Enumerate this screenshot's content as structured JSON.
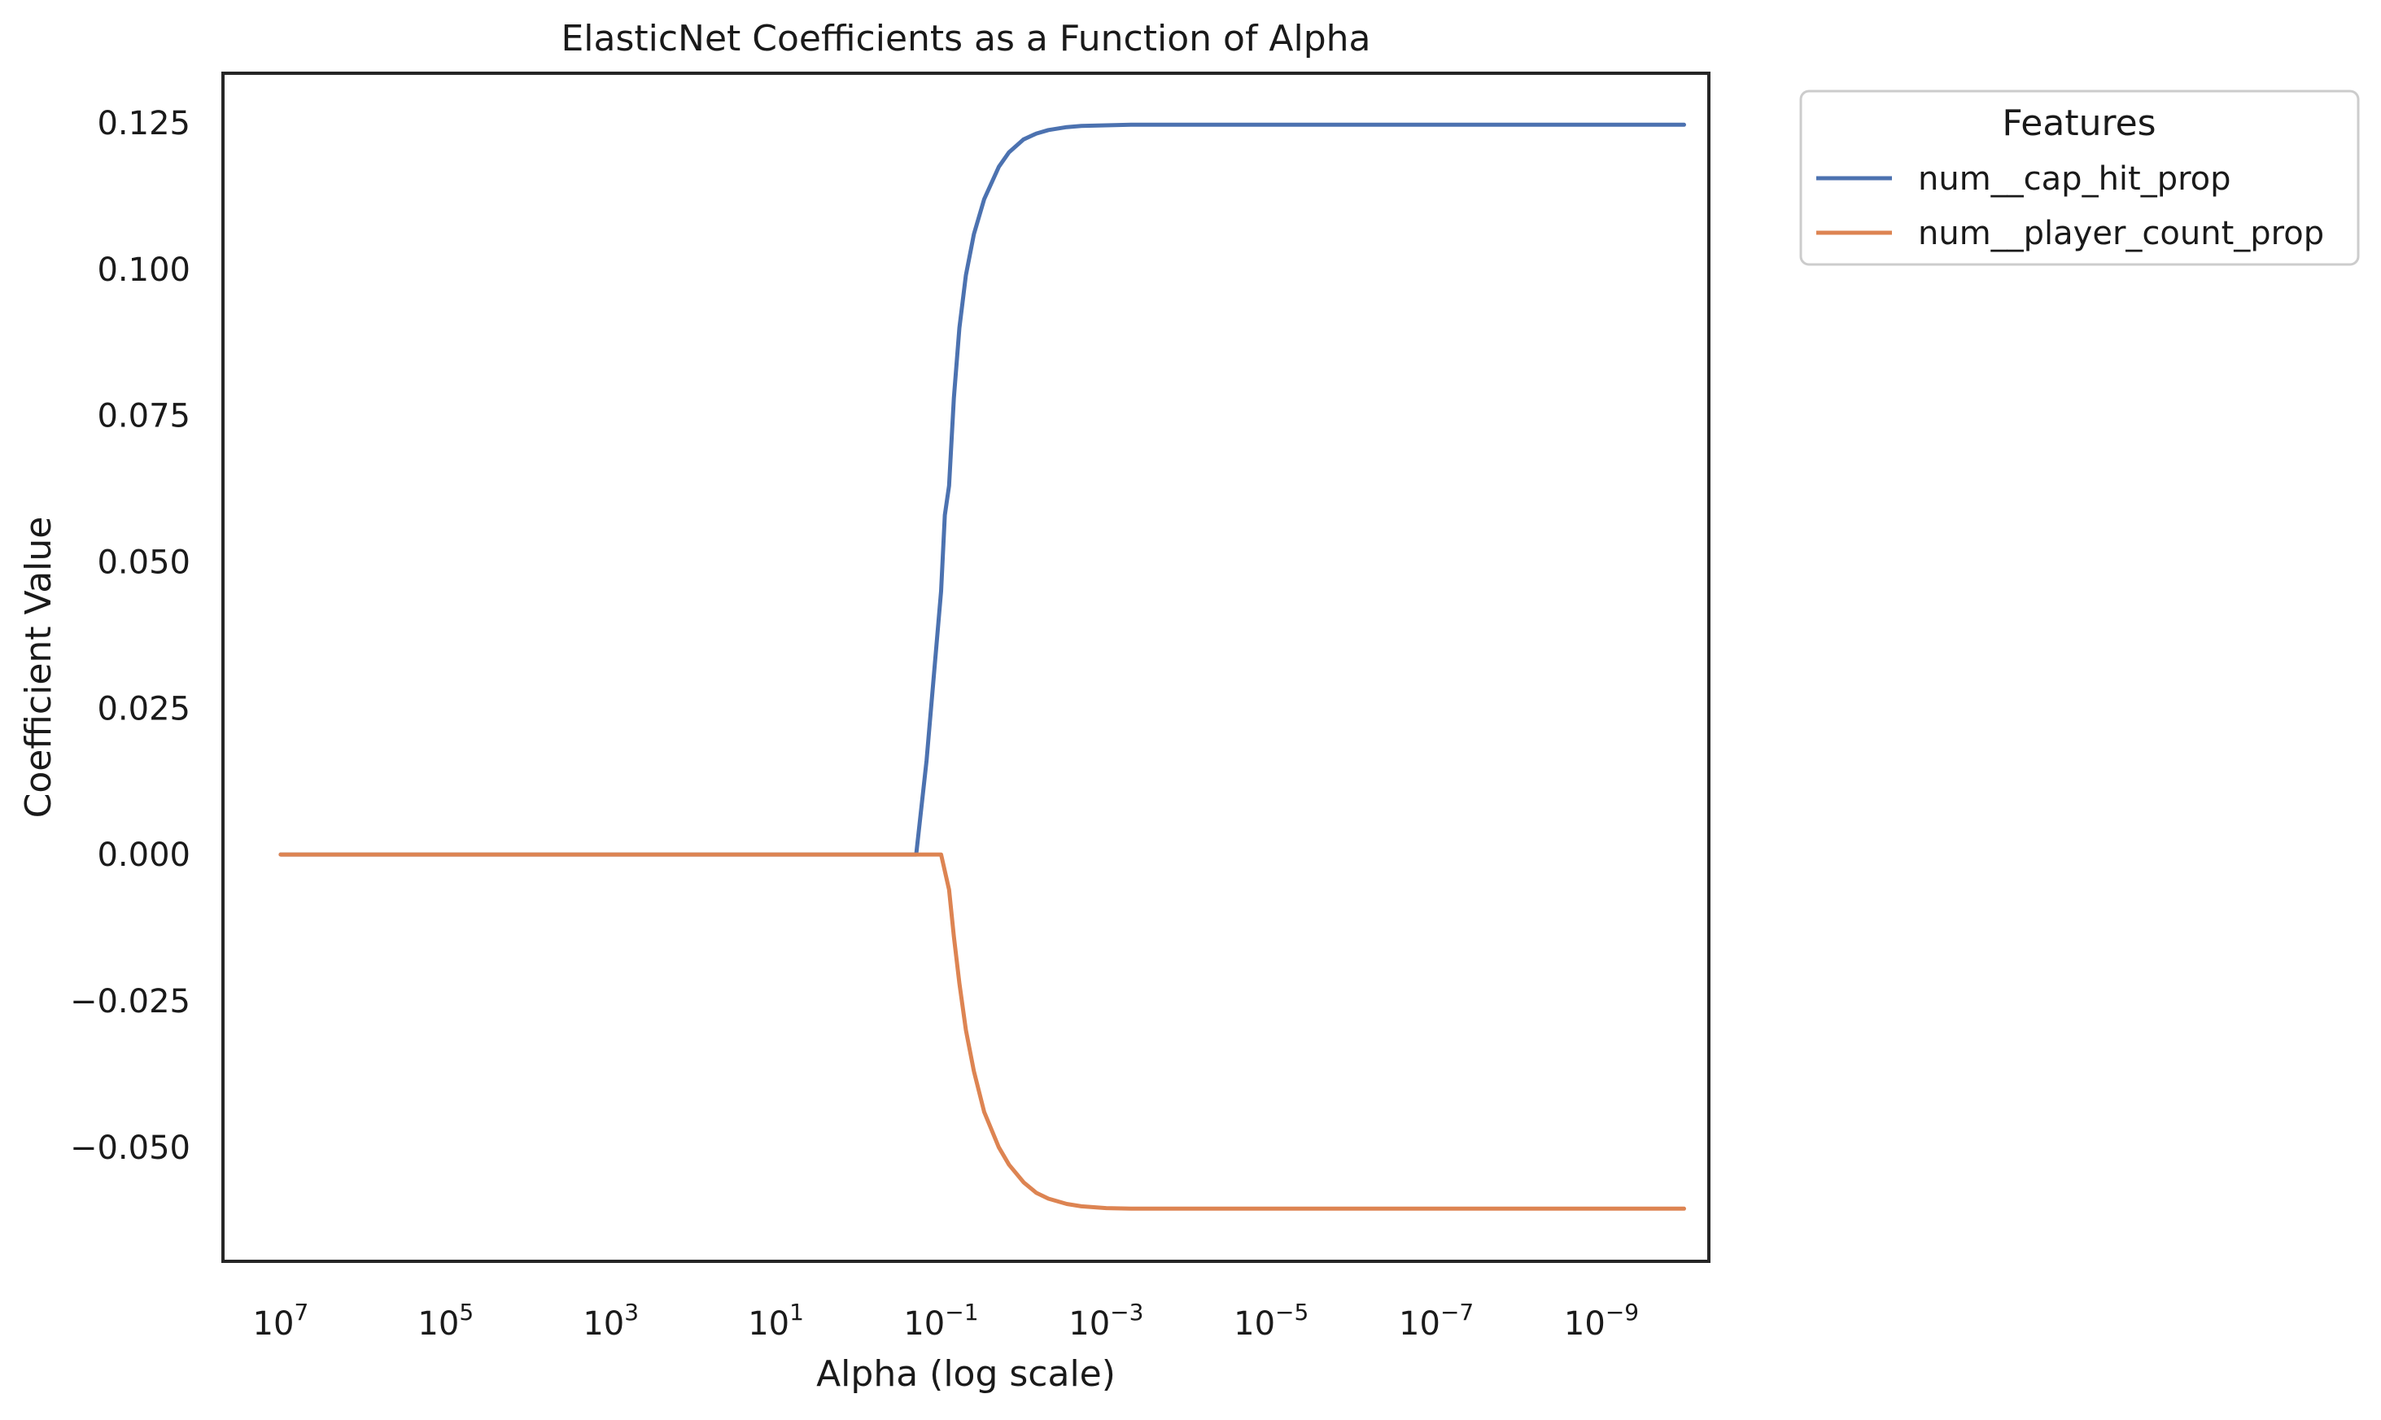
{
  "chart_data": {
    "type": "line",
    "title": "ElasticNet Coefficients as a Function of Alpha",
    "xlabel": "Alpha (log scale)",
    "ylabel": "Coefficient Value",
    "x_scale": "log",
    "x_inverted": true,
    "xlim": [
      50000000.0,
      5e-11
    ],
    "ylim": [
      -0.0695,
      0.1335
    ],
    "grid": false,
    "x_ticks": [
      {
        "value": 10000000.0,
        "base": "10",
        "exp": "7"
      },
      {
        "value": 100000.0,
        "base": "10",
        "exp": "5"
      },
      {
        "value": 1000.0,
        "base": "10",
        "exp": "3"
      },
      {
        "value": 10.0,
        "base": "10",
        "exp": "1"
      },
      {
        "value": 0.1,
        "base": "10",
        "exp": "−1"
      },
      {
        "value": 0.001,
        "base": "10",
        "exp": "−3"
      },
      {
        "value": 1e-05,
        "base": "10",
        "exp": "−5"
      },
      {
        "value": 1e-07,
        "base": "10",
        "exp": "−7"
      },
      {
        "value": 1e-09,
        "base": "10",
        "exp": "−9"
      }
    ],
    "y_ticks": [
      {
        "value": 0.125,
        "label": "0.125"
      },
      {
        "value": 0.1,
        "label": "0.100"
      },
      {
        "value": 0.075,
        "label": "0.075"
      },
      {
        "value": 0.05,
        "label": "0.050"
      },
      {
        "value": 0.025,
        "label": "0.025"
      },
      {
        "value": 0,
        "label": "0.000"
      },
      {
        "value": -0.025,
        "label": "−0.025"
      },
      {
        "value": -0.05,
        "label": "−0.050"
      }
    ],
    "legend": {
      "title": "Features",
      "placement": "outside-upper-right"
    },
    "series": [
      {
        "name": "num__cap_hit_prop",
        "color": "#4c72b0",
        "x": [
          10000000.0,
          100000.0,
          1000.0,
          10.0,
          1,
          0.3,
          0.2,
          0.15,
          0.1,
          0.09,
          0.08,
          0.07,
          0.06,
          0.05,
          0.04,
          0.03,
          0.02,
          0.015,
          0.01,
          0.007,
          0.005,
          0.003,
          0.002,
          0.001,
          0.0005,
          0.0001,
          1e-05,
          1e-06,
          1e-07,
          1e-08,
          1e-09,
          1e-10
        ],
        "y": [
          0,
          0,
          0,
          0,
          0,
          0,
          0,
          0.016,
          0.045,
          0.058,
          0.063,
          0.078,
          0.09,
          0.099,
          0.106,
          0.112,
          0.1175,
          0.12,
          0.1222,
          0.1232,
          0.1238,
          0.1243,
          0.1245,
          0.1246,
          0.1247,
          0.1247,
          0.1247,
          0.1247,
          0.1247,
          0.1247,
          0.1247,
          0.1247
        ]
      },
      {
        "name": "num__player_count_prop",
        "color": "#dd8452",
        "x": [
          10000000.0,
          100000.0,
          1000.0,
          10.0,
          1,
          0.3,
          0.2,
          0.15,
          0.1,
          0.08,
          0.07,
          0.06,
          0.05,
          0.04,
          0.03,
          0.02,
          0.015,
          0.01,
          0.007,
          0.005,
          0.003,
          0.002,
          0.001,
          0.0005,
          0.0001,
          1e-05,
          1e-06,
          1e-07,
          1e-08,
          1e-09,
          1e-10
        ],
        "y": [
          0,
          0,
          0,
          0,
          0,
          0,
          0,
          0,
          0,
          -0.006,
          -0.014,
          -0.022,
          -0.03,
          -0.037,
          -0.044,
          -0.05,
          -0.053,
          -0.056,
          -0.0578,
          -0.0588,
          -0.0597,
          -0.0601,
          -0.0604,
          -0.0605,
          -0.0605,
          -0.0605,
          -0.0605,
          -0.0605,
          -0.0605,
          -0.0605,
          -0.0605
        ]
      }
    ]
  }
}
